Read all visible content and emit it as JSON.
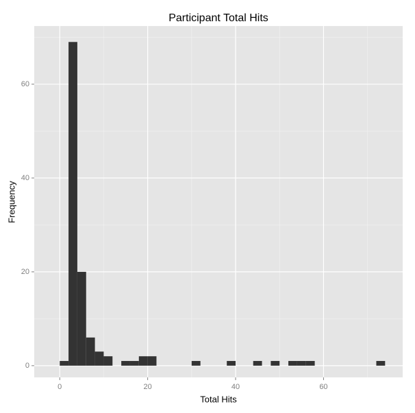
{
  "chart_data": {
    "type": "histogram",
    "title": "Participant Total Hits",
    "x_label": "Total Hits",
    "y_label": "Frequency",
    "bins": [
      0,
      2,
      4,
      6,
      8,
      10,
      12,
      14,
      16,
      18,
      20,
      22,
      24,
      26,
      28,
      30,
      32,
      34,
      36,
      38,
      40,
      42,
      44,
      46,
      48,
      50,
      52,
      54,
      56,
      58,
      60,
      62,
      64,
      66,
      68,
      70,
      72,
      74
    ],
    "values": [
      1,
      69,
      20,
      6,
      3,
      2,
      0,
      1,
      1,
      2,
      2,
      0,
      0,
      0,
      0,
      1,
      0,
      0,
      0,
      1,
      0,
      0,
      1,
      0,
      1,
      0,
      1,
      1,
      1,
      0,
      0,
      0,
      0,
      0,
      0,
      0,
      1
    ],
    "color": "#333333",
    "xlim": [
      -5.8,
      78
    ],
    "ylim": [
      -2.5,
      72.4
    ],
    "xticks": [
      0,
      20,
      40,
      60
    ],
    "yticks": [
      0,
      20,
      40,
      60
    ],
    "x_minor_grid": [
      10,
      30,
      50,
      70
    ],
    "y_minor_grid": [
      10,
      30,
      50,
      70
    ],
    "grid": true
  }
}
